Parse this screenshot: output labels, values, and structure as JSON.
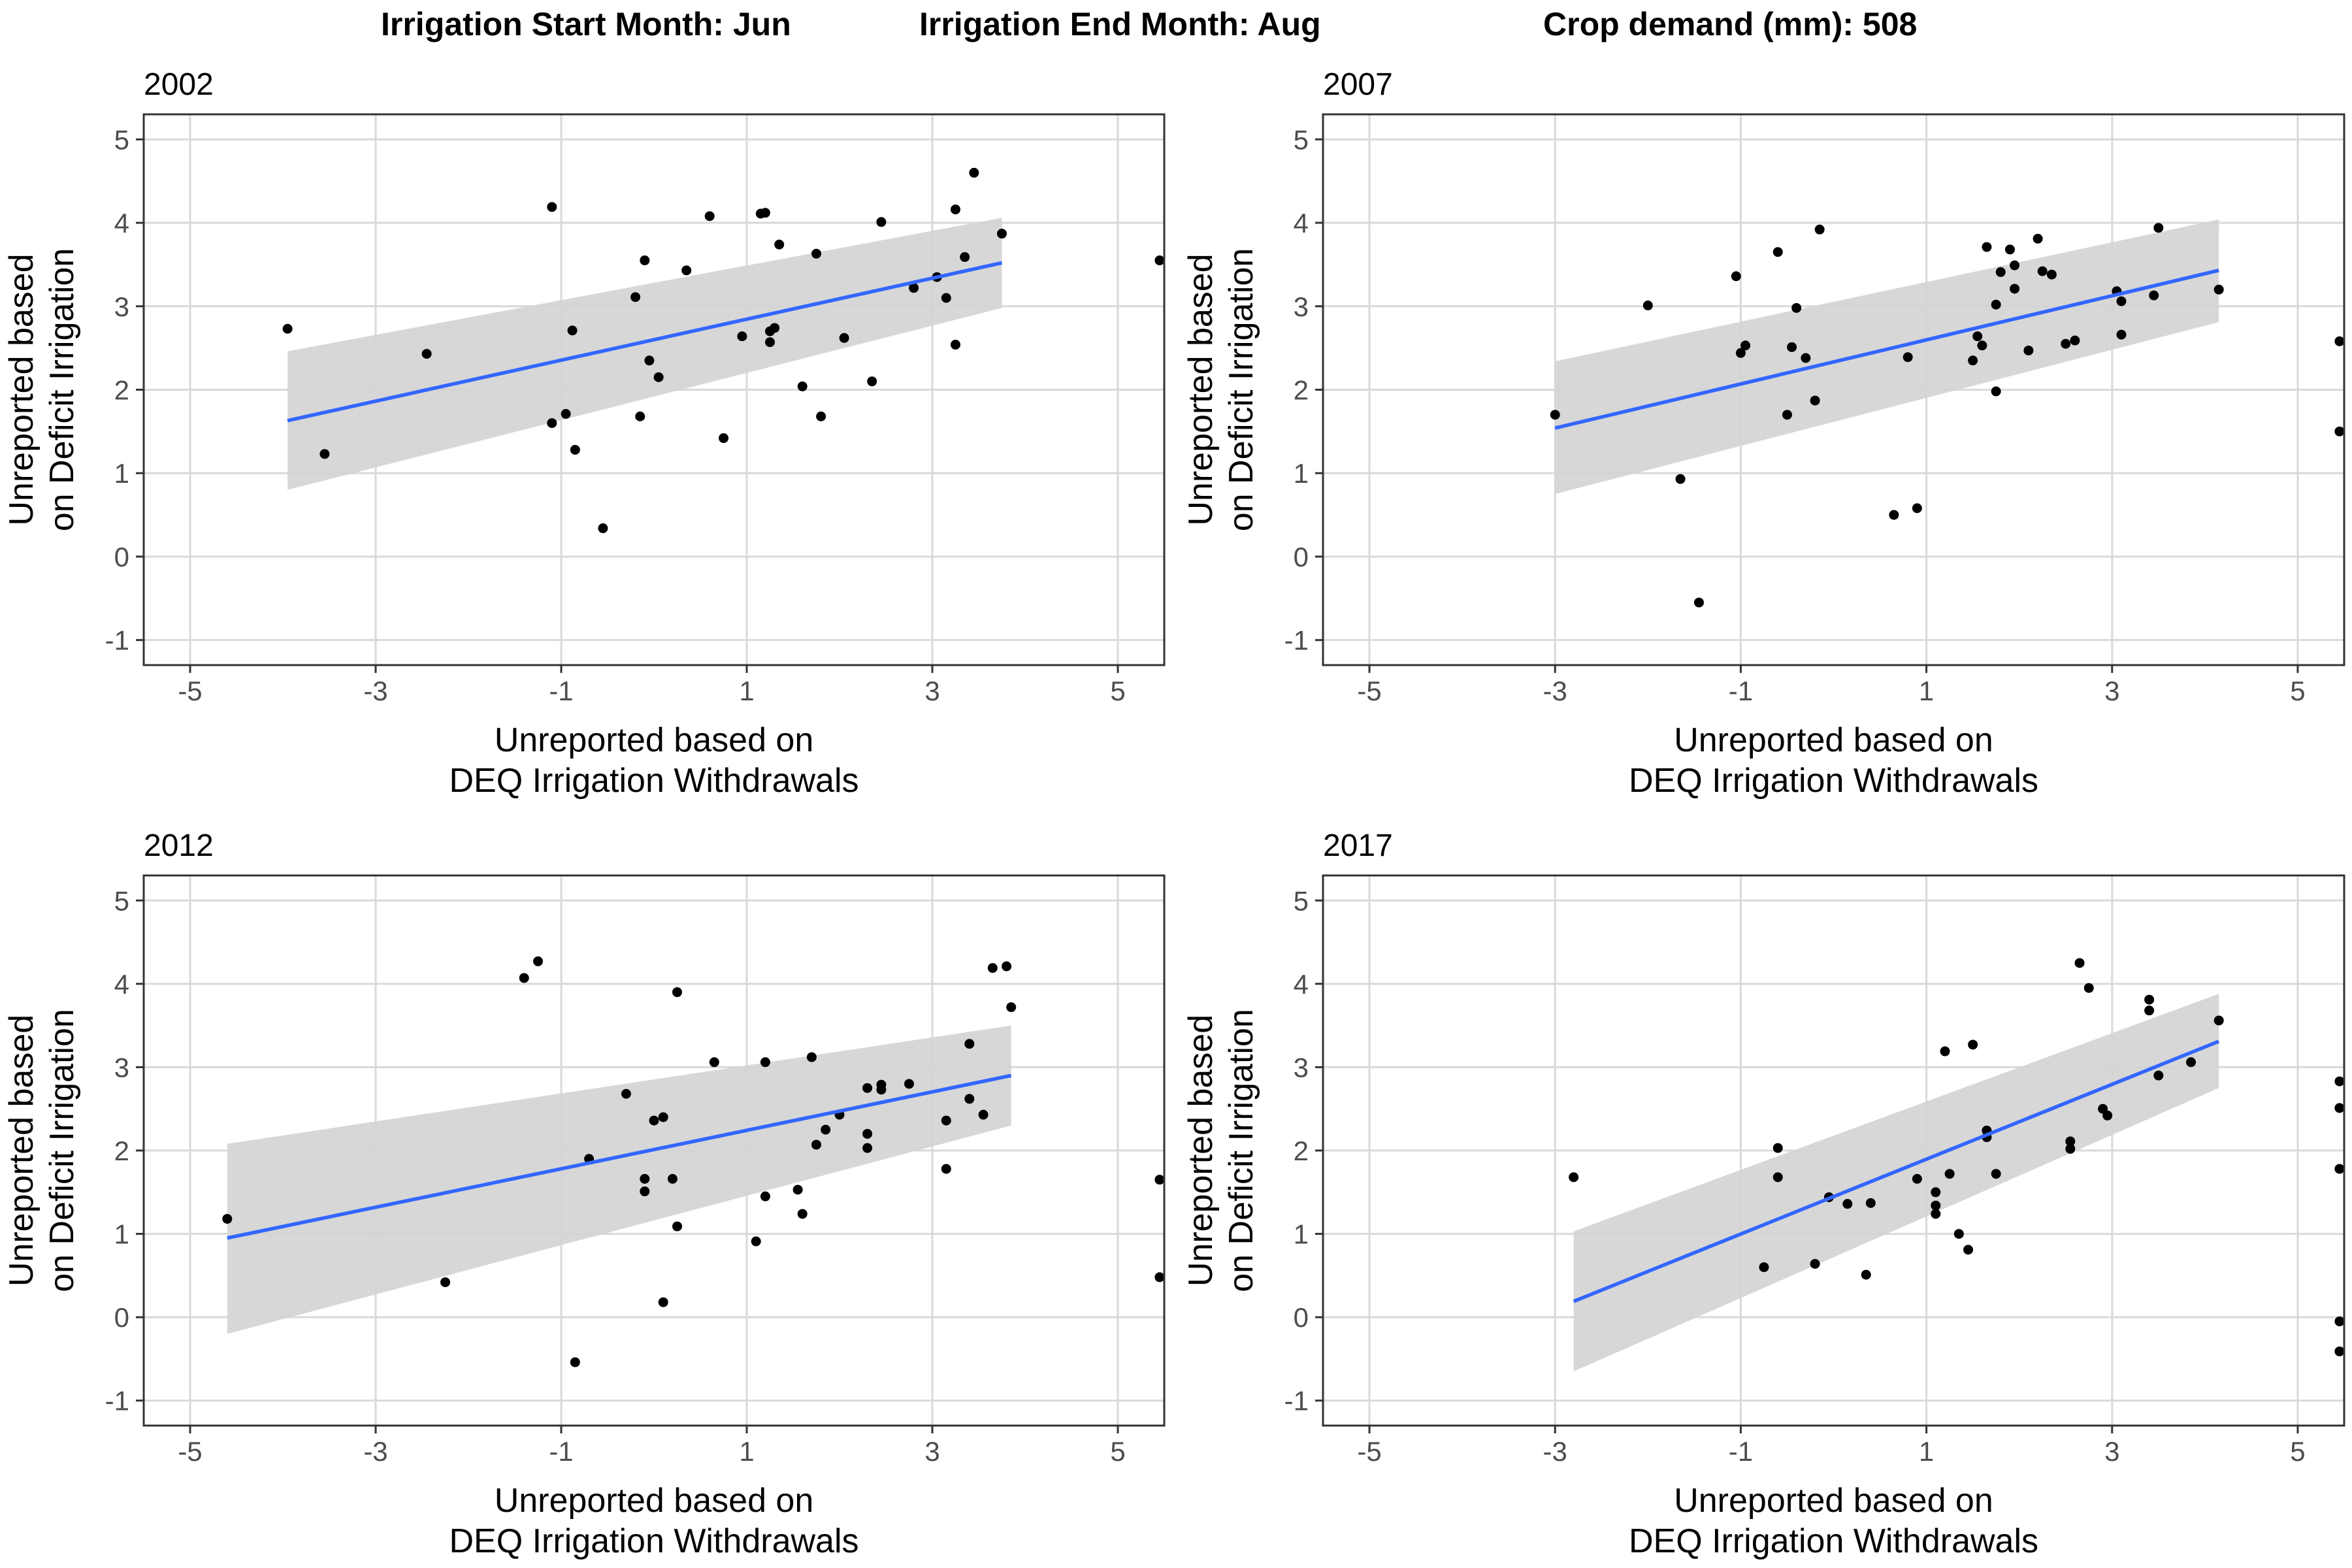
{
  "header": {
    "start": "Irrigation Start Month: Jun",
    "end": "Irrigation End Month: Aug",
    "crop": "Crop demand (mm): 508"
  },
  "colors": {
    "points": "#000000",
    "fit_line": "#3366FF",
    "ribbon": "#d3d3d3",
    "grid": "#d9d9d9",
    "border": "#333333"
  },
  "chart_data": [
    {
      "type": "scatter",
      "title": "2002",
      "xlabel": "Unreported based on\nDEQ Irrigation Withdrawals",
      "ylabel": "Unreported based\non Deficit Irrigation",
      "xlim": [
        -5.5,
        5.5
      ],
      "ylim": [
        -1.3,
        5.3
      ],
      "xticks": [
        -5,
        -3,
        -1,
        1,
        3,
        5
      ],
      "yticks": [
        -1,
        0,
        1,
        2,
        3,
        4,
        5
      ],
      "grid": true,
      "points": [
        [
          -3.95,
          2.73
        ],
        [
          -3.55,
          1.23
        ],
        [
          -2.45,
          2.43
        ],
        [
          -1.1,
          4.19
        ],
        [
          -1.1,
          1.6
        ],
        [
          -0.95,
          1.71
        ],
        [
          -0.88,
          2.71
        ],
        [
          -0.85,
          1.28
        ],
        [
          -0.55,
          0.34
        ],
        [
          -0.2,
          3.11
        ],
        [
          -0.15,
          1.68
        ],
        [
          -0.1,
          3.55
        ],
        [
          -0.05,
          2.35
        ],
        [
          0.05,
          2.15
        ],
        [
          0.35,
          3.43
        ],
        [
          0.6,
          4.08
        ],
        [
          0.75,
          1.42
        ],
        [
          0.95,
          2.64
        ],
        [
          1.15,
          4.11
        ],
        [
          1.2,
          4.12
        ],
        [
          1.25,
          2.7
        ],
        [
          1.25,
          2.57
        ],
        [
          1.3,
          2.74
        ],
        [
          1.35,
          3.74
        ],
        [
          1.6,
          2.04
        ],
        [
          1.75,
          3.63
        ],
        [
          1.8,
          1.68
        ],
        [
          2.05,
          2.62
        ],
        [
          2.35,
          2.1
        ],
        [
          2.45,
          4.01
        ],
        [
          2.8,
          3.22
        ],
        [
          3.05,
          3.35
        ],
        [
          3.15,
          3.1
        ],
        [
          3.25,
          4.16
        ],
        [
          3.25,
          2.54
        ],
        [
          3.35,
          3.59
        ],
        [
          3.45,
          4.6
        ],
        [
          3.75,
          3.87
        ],
        [
          5.45,
          3.55
        ]
      ],
      "fit": {
        "x": [
          -3.95,
          3.75
        ],
        "y": [
          1.63,
          3.52
        ],
        "lower": [
          0.8,
          2.98
        ],
        "upper": [
          2.46,
          4.06
        ]
      }
    },
    {
      "type": "scatter",
      "title": "2007",
      "xlabel": "Unreported based on\nDEQ Irrigation Withdrawals",
      "ylabel": "Unreported based\non Deficit Irrigation",
      "xlim": [
        -5.5,
        5.5
      ],
      "ylim": [
        -1.3,
        5.3
      ],
      "xticks": [
        -5,
        -3,
        -1,
        1,
        3,
        5
      ],
      "yticks": [
        -1,
        0,
        1,
        2,
        3,
        4,
        5
      ],
      "grid": true,
      "points": [
        [
          -3.0,
          1.7
        ],
        [
          -2.0,
          3.01
        ],
        [
          -1.65,
          0.93
        ],
        [
          -1.45,
          -0.55
        ],
        [
          -1.05,
          3.36
        ],
        [
          -1.0,
          2.44
        ],
        [
          -0.95,
          2.53
        ],
        [
          -0.6,
          3.65
        ],
        [
          -0.5,
          1.7
        ],
        [
          -0.45,
          2.51
        ],
        [
          -0.4,
          2.98
        ],
        [
          -0.3,
          2.38
        ],
        [
          -0.2,
          1.87
        ],
        [
          -0.15,
          3.92
        ],
        [
          0.65,
          0.5
        ],
        [
          0.8,
          2.39
        ],
        [
          0.9,
          0.58
        ],
        [
          1.5,
          2.35
        ],
        [
          1.55,
          2.64
        ],
        [
          1.6,
          2.53
        ],
        [
          1.65,
          3.71
        ],
        [
          1.75,
          3.02
        ],
        [
          1.75,
          1.98
        ],
        [
          1.8,
          3.41
        ],
        [
          1.9,
          3.68
        ],
        [
          1.95,
          3.21
        ],
        [
          1.95,
          3.49
        ],
        [
          2.1,
          2.47
        ],
        [
          2.2,
          3.81
        ],
        [
          2.25,
          3.42
        ],
        [
          2.35,
          3.38
        ],
        [
          2.5,
          2.55
        ],
        [
          2.6,
          2.59
        ],
        [
          3.05,
          3.18
        ],
        [
          3.1,
          3.06
        ],
        [
          3.1,
          2.66
        ],
        [
          3.45,
          3.13
        ],
        [
          3.5,
          3.94
        ],
        [
          4.15,
          3.2
        ],
        [
          5.45,
          2.58
        ],
        [
          5.45,
          1.5
        ]
      ],
      "fit": {
        "x": [
          -3.0,
          4.15
        ],
        "y": [
          1.54,
          3.43
        ],
        "lower": [
          0.75,
          2.81
        ],
        "upper": [
          2.34,
          4.04
        ]
      }
    },
    {
      "type": "scatter",
      "title": "2012",
      "xlabel": "Unreported based on\nDEQ Irrigation Withdrawals",
      "ylabel": "Unreported based\non Deficit Irrigation",
      "xlim": [
        -5.5,
        5.5
      ],
      "ylim": [
        -1.3,
        5.3
      ],
      "xticks": [
        -5,
        -3,
        -1,
        1,
        3,
        5
      ],
      "yticks": [
        -1,
        0,
        1,
        2,
        3,
        4,
        5
      ],
      "grid": true,
      "points": [
        [
          -4.6,
          1.18
        ],
        [
          -2.25,
          0.42
        ],
        [
          -1.4,
          4.07
        ],
        [
          -1.25,
          4.27
        ],
        [
          -0.85,
          -0.54
        ],
        [
          -0.7,
          1.9
        ],
        [
          -0.3,
          2.68
        ],
        [
          -0.1,
          1.51
        ],
        [
          -0.1,
          1.66
        ],
        [
          0.0,
          2.36
        ],
        [
          0.1,
          0.18
        ],
        [
          0.1,
          2.4
        ],
        [
          0.2,
          1.66
        ],
        [
          0.25,
          1.09
        ],
        [
          0.25,
          3.9
        ],
        [
          0.65,
          3.06
        ],
        [
          1.1,
          0.91
        ],
        [
          1.2,
          3.06
        ],
        [
          1.2,
          1.45
        ],
        [
          1.55,
          1.53
        ],
        [
          1.6,
          1.24
        ],
        [
          1.7,
          3.12
        ],
        [
          1.75,
          2.07
        ],
        [
          1.85,
          2.25
        ],
        [
          2.0,
          2.43
        ],
        [
          2.3,
          2.2
        ],
        [
          2.3,
          2.75
        ],
        [
          2.3,
          2.03
        ],
        [
          2.45,
          2.79
        ],
        [
          2.45,
          2.73
        ],
        [
          2.75,
          2.8
        ],
        [
          3.15,
          2.36
        ],
        [
          3.15,
          1.78
        ],
        [
          3.4,
          3.28
        ],
        [
          3.4,
          2.62
        ],
        [
          3.55,
          2.43
        ],
        [
          3.65,
          4.19
        ],
        [
          3.8,
          4.21
        ],
        [
          3.85,
          3.72
        ],
        [
          5.45,
          1.65
        ],
        [
          5.45,
          0.48
        ]
      ],
      "fit": {
        "x": [
          -4.6,
          3.85
        ],
        "y": [
          0.95,
          2.9
        ],
        "lower": [
          -0.2,
          2.3
        ],
        "upper": [
          2.08,
          3.5
        ]
      }
    },
    {
      "type": "scatter",
      "title": "2017",
      "xlabel": "Unreported based on\nDEQ Irrigation Withdrawals",
      "ylabel": "Unreported based\non Deficit Irrigation",
      "xlim": [
        -5.5,
        5.5
      ],
      "ylim": [
        -1.3,
        5.3
      ],
      "xticks": [
        -5,
        -3,
        -1,
        1,
        3,
        5
      ],
      "yticks": [
        -1,
        0,
        1,
        2,
        3,
        4,
        5
      ],
      "grid": true,
      "points": [
        [
          -2.8,
          1.68
        ],
        [
          -0.75,
          0.6
        ],
        [
          -0.6,
          2.03
        ],
        [
          -0.6,
          1.68
        ],
        [
          -0.2,
          0.64
        ],
        [
          -0.05,
          1.44
        ],
        [
          0.15,
          1.36
        ],
        [
          0.35,
          0.51
        ],
        [
          0.4,
          1.37
        ],
        [
          0.9,
          1.66
        ],
        [
          1.1,
          1.5
        ],
        [
          1.1,
          1.34
        ],
        [
          1.1,
          1.24
        ],
        [
          1.2,
          3.19
        ],
        [
          1.25,
          1.72
        ],
        [
          1.35,
          1.0
        ],
        [
          1.45,
          0.81
        ],
        [
          1.5,
          3.27
        ],
        [
          1.65,
          2.16
        ],
        [
          1.65,
          2.24
        ],
        [
          1.75,
          1.72
        ],
        [
          2.55,
          2.02
        ],
        [
          2.55,
          2.11
        ],
        [
          2.65,
          4.25
        ],
        [
          2.75,
          3.95
        ],
        [
          2.9,
          2.5
        ],
        [
          2.95,
          2.42
        ],
        [
          3.4,
          3.81
        ],
        [
          3.4,
          3.68
        ],
        [
          3.5,
          2.9
        ],
        [
          3.85,
          3.06
        ],
        [
          4.15,
          3.56
        ],
        [
          5.45,
          2.83
        ],
        [
          5.45,
          2.51
        ],
        [
          5.45,
          1.78
        ],
        [
          5.45,
          -0.05
        ],
        [
          5.45,
          -0.41
        ]
      ],
      "fit": {
        "x": [
          -2.8,
          4.15
        ],
        "y": [
          0.19,
          3.31
        ],
        "lower": [
          -0.65,
          2.75
        ],
        "upper": [
          1.03,
          3.88
        ]
      }
    }
  ]
}
